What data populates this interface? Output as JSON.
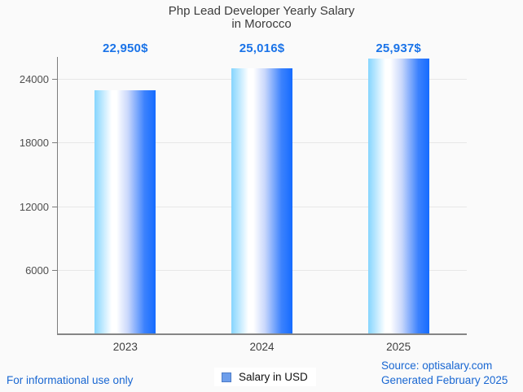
{
  "page": {
    "background": "#fafafa"
  },
  "title": {
    "line1": "Php Lead Developer Yearly Salary",
    "line2": "in Morocco",
    "color": "#3c3c3c"
  },
  "chart_data": {
    "type": "bar",
    "categories": [
      "2023",
      "2024",
      "2025"
    ],
    "series": [
      {
        "name": "Salary in USD",
        "values": [
          22950,
          25016,
          25937
        ]
      }
    ],
    "value_labels": [
      "22,950$",
      "25,016$",
      "25,937$"
    ],
    "title": "Php Lead Developer Yearly Salary in Morocco",
    "xlabel": "",
    "ylabel": "",
    "ylim": [
      0,
      26060
    ],
    "yticks": [
      6000,
      12000,
      18000,
      24000
    ],
    "grid": true,
    "legend_position": "bottom",
    "bar_gradient_stops": [
      "#85d5fe",
      "#ffffff",
      "#ffffff",
      "#c9d7fb",
      "#3c82fd",
      "#156bff"
    ],
    "bar_gradient_positions": [
      0,
      28,
      36,
      55,
      82,
      100
    ],
    "value_label_color": "#1a73e8",
    "grid_color": "#e7e7e7",
    "axis_color": "#7d7d7d",
    "tick_label_color": "#4f4f4f"
  },
  "legend": {
    "label": "Salary in USD",
    "swatch_color": "#6d9eeb"
  },
  "footer": {
    "disclaimer": "For informational use only",
    "source": "Source: optisalary.com",
    "generated": "Generated February 2025",
    "link_color": "#1967d2"
  }
}
